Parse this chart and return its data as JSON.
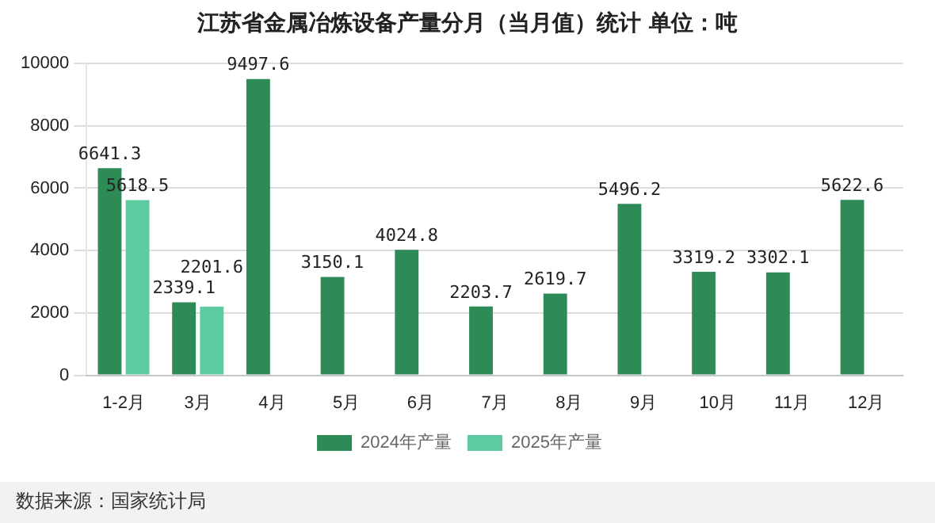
{
  "chart_data": {
    "type": "bar",
    "title": "江苏省金属冶炼设备产量分月（当月值）统计  单位：吨",
    "categories": [
      "1-2月",
      "3月",
      "4月",
      "5月",
      "6月",
      "7月",
      "8月",
      "9月",
      "10月",
      "11月",
      "12月"
    ],
    "series": [
      {
        "name": "2024年产量",
        "color": "#2e8b57",
        "values": [
          6641.3,
          2339.1,
          9497.6,
          3150.1,
          4024.8,
          2203.7,
          2619.7,
          5496.2,
          3319.2,
          3302.1,
          5622.6
        ]
      },
      {
        "name": "2025年产量",
        "color": "#5ccba0",
        "values": [
          5618.5,
          2201.6,
          null,
          null,
          null,
          null,
          null,
          null,
          null,
          null,
          null
        ]
      }
    ],
    "ylim": [
      0,
      10000
    ],
    "yticks": [
      0,
      2000,
      4000,
      6000,
      8000,
      10000
    ],
    "grid": "y",
    "legend": "bottom",
    "data_labels": true,
    "annotations": [
      "数据来源：国家统计局"
    ]
  }
}
